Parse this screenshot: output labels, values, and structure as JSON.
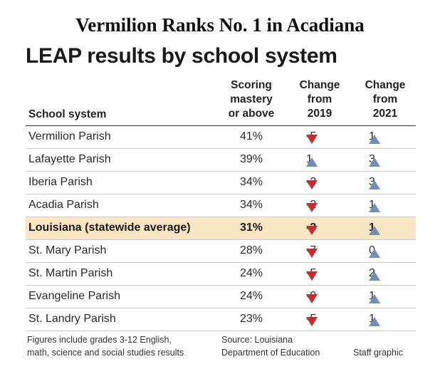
{
  "headline": "Vermilion Ranks No. 1 in Acadiana",
  "chart_data": {
    "type": "table",
    "title": "LEAP results by school system",
    "columns": [
      "School system",
      "Scoring mastery or above",
      "Change from 2019",
      "Change from 2021"
    ],
    "rows": [
      {
        "name": "Vermilion Parish",
        "mastery": "41%",
        "change_2019": "-5",
        "dir_2019": "down",
        "change_2021": "1",
        "dir_2021": "up",
        "highlight": false
      },
      {
        "name": "Lafayette Parish",
        "mastery": "39%",
        "change_2019": "1",
        "dir_2019": "up",
        "change_2021": "3",
        "dir_2021": "up",
        "highlight": false
      },
      {
        "name": "Iberia Parish",
        "mastery": "34%",
        "change_2019": "-3",
        "dir_2019": "down",
        "change_2021": "3",
        "dir_2021": "up",
        "highlight": false
      },
      {
        "name": "Acadia Parish",
        "mastery": "34%",
        "change_2019": "-2",
        "dir_2019": "down",
        "change_2021": "1",
        "dir_2021": "up",
        "highlight": false
      },
      {
        "name": "Louisiana (statewide average)",
        "mastery": "31%",
        "change_2019": "-3",
        "dir_2019": "down",
        "change_2021": "1",
        "dir_2021": "up",
        "highlight": true
      },
      {
        "name": "St. Mary Parish",
        "mastery": "28%",
        "change_2019": "-7",
        "dir_2019": "down",
        "change_2021": "0",
        "dir_2021": "up",
        "highlight": false
      },
      {
        "name": "St. Martin Parish",
        "mastery": "24%",
        "change_2019": "-5",
        "dir_2019": "down",
        "change_2021": "2",
        "dir_2021": "up",
        "highlight": false
      },
      {
        "name": "Evangeline Parish",
        "mastery": "24%",
        "change_2019": "-9",
        "dir_2019": "down",
        "change_2021": "1",
        "dir_2021": "up",
        "highlight": false
      },
      {
        "name": "St. Landry Parish",
        "mastery": "23%",
        "change_2019": "-5",
        "dir_2019": "down",
        "change_2021": "1",
        "dir_2021": "up",
        "highlight": false
      }
    ],
    "colors": {
      "down": "#d0282c",
      "up": "#6e8fb8",
      "highlight": "#fbe6c4"
    }
  },
  "header": {
    "col1": "School system",
    "col2": [
      "Scoring",
      "mastery",
      "or above"
    ],
    "col3": [
      "Change",
      "from",
      "2019"
    ],
    "col4": [
      "Change",
      "from",
      "2021"
    ]
  },
  "footer": {
    "note": [
      "Figures include grades 3-12 English,",
      "math, science and social studies results"
    ],
    "source": [
      "Source: Louisiana",
      "Department of Education"
    ],
    "credit": "Staff graphic"
  }
}
